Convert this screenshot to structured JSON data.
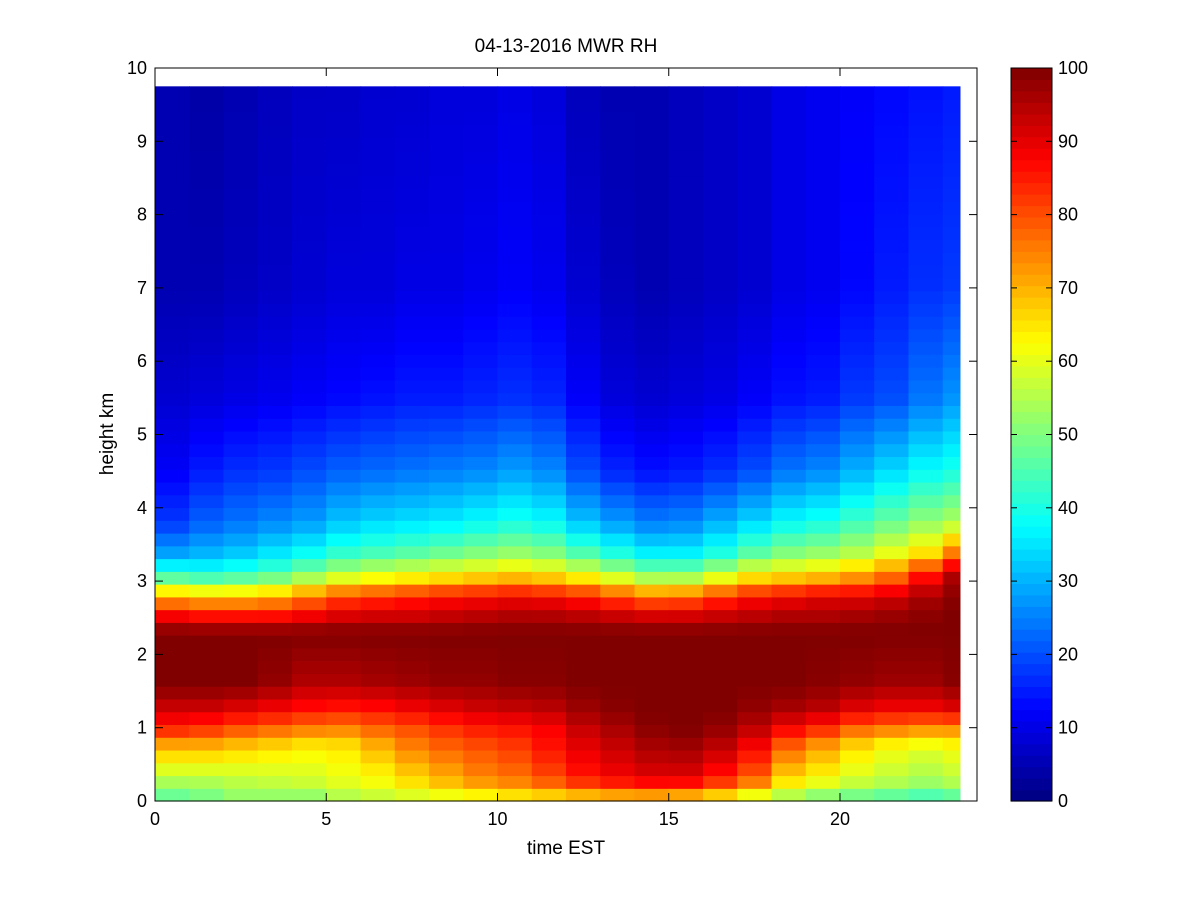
{
  "chart_data": {
    "type": "heatmap",
    "title": "04-13-2016 MWR RH",
    "xlabel": "time EST",
    "ylabel": "height km",
    "xlim": [
      0,
      24
    ],
    "ylim": [
      0,
      10
    ],
    "xticks": [
      0,
      5,
      10,
      15,
      20
    ],
    "yticks": [
      0,
      1,
      2,
      3,
      4,
      5,
      6,
      7,
      8,
      9,
      10
    ],
    "colorbar": {
      "label": "",
      "clim": [
        0,
        100
      ],
      "ticks": [
        0,
        10,
        20,
        30,
        40,
        50,
        60,
        70,
        80,
        90,
        100
      ],
      "colormap": "jet"
    },
    "x": [
      0,
      1,
      2,
      3,
      4,
      5,
      6,
      7,
      8,
      9,
      10,
      11,
      12,
      13,
      14,
      15,
      16,
      17,
      18,
      19,
      20,
      21,
      22,
      23
    ],
    "x_end": 23.5,
    "y_top": 9.75,
    "profiles": [
      {
        "heights": [
          0,
          0.1,
          0.3,
          0.75,
          1.0,
          1.25,
          1.6,
          2.3,
          2.5,
          2.8,
          3.1,
          3.4,
          3.8,
          4.5,
          5.5,
          7.0,
          9.75
        ],
        "rh": [
          35,
          50,
          55,
          70,
          85,
          92,
          100,
          100,
          90,
          70,
          42,
          28,
          18,
          12,
          8,
          5,
          5
        ]
      },
      {
        "heights": [
          0,
          0.1,
          0.3,
          0.75,
          1.0,
          1.25,
          1.6,
          2.3,
          2.5,
          2.8,
          3.1,
          3.4,
          3.8,
          4.5,
          5.5,
          7.0,
          9.75
        ],
        "rh": [
          35,
          52,
          55,
          70,
          83,
          92,
          100,
          100,
          88,
          68,
          40,
          30,
          22,
          15,
          9,
          5,
          4
        ]
      },
      {
        "heights": [
          0,
          0.1,
          0.3,
          0.75,
          1.0,
          1.25,
          1.6,
          2.3,
          2.5,
          2.8,
          3.1,
          3.4,
          3.8,
          4.5,
          5.5,
          7.0,
          9.75
        ],
        "rh": [
          35,
          55,
          56,
          68,
          80,
          90,
          100,
          100,
          88,
          68,
          42,
          32,
          24,
          17,
          10,
          6,
          5
        ]
      },
      {
        "heights": [
          0,
          0.1,
          0.3,
          0.75,
          1.0,
          1.25,
          1.6,
          2.3,
          2.5,
          2.8,
          3.1,
          3.4,
          3.8,
          4.5,
          5.5,
          7.0,
          9.75
        ],
        "rh": [
          35,
          55,
          57,
          66,
          78,
          88,
          98,
          100,
          88,
          70,
          45,
          35,
          26,
          18,
          11,
          7,
          6
        ]
      },
      {
        "heights": [
          0,
          0.1,
          0.3,
          0.75,
          1.0,
          1.25,
          1.6,
          2.3,
          2.5,
          2.8,
          3.1,
          3.4,
          3.8,
          4.5,
          5.5,
          7.0,
          9.75
        ],
        "rh": [
          36,
          55,
          58,
          64,
          76,
          86,
          95,
          100,
          90,
          75,
          50,
          38,
          28,
          20,
          12,
          8,
          7
        ]
      },
      {
        "heights": [
          0,
          0.1,
          0.3,
          0.75,
          1.0,
          1.25,
          1.6,
          2.3,
          2.5,
          2.8,
          3.1,
          3.4,
          3.8,
          4.5,
          5.5,
          7.0,
          9.75
        ],
        "rh": [
          38,
          58,
          60,
          65,
          75,
          85,
          95,
          100,
          92,
          80,
          55,
          42,
          32,
          22,
          13,
          9,
          7
        ]
      },
      {
        "heights": [
          0,
          0.1,
          0.3,
          0.75,
          1.0,
          1.25,
          1.6,
          2.3,
          2.5,
          2.8,
          3.1,
          3.4,
          3.8,
          4.5,
          5.5,
          7.0,
          9.75
        ],
        "rh": [
          40,
          60,
          62,
          70,
          78,
          86,
          96,
          100,
          93,
          82,
          58,
          44,
          34,
          23,
          14,
          9,
          8
        ]
      },
      {
        "heights": [
          0,
          0.1,
          0.3,
          0.75,
          1.0,
          1.25,
          1.6,
          2.3,
          2.5,
          2.8,
          3.1,
          3.4,
          3.8,
          4.5,
          5.5,
          7.0,
          9.75
        ],
        "rh": [
          42,
          62,
          66,
          75,
          80,
          88,
          97,
          100,
          93,
          84,
          60,
          46,
          35,
          24,
          15,
          10,
          8
        ]
      },
      {
        "heights": [
          0,
          0.1,
          0.3,
          0.75,
          1.0,
          1.25,
          1.6,
          2.3,
          2.5,
          2.8,
          3.1,
          3.4,
          3.8,
          4.5,
          5.5,
          7.0,
          9.75
        ],
        "rh": [
          44,
          64,
          70,
          78,
          83,
          90,
          98,
          100,
          94,
          86,
          62,
          48,
          36,
          25,
          15,
          10,
          9
        ]
      },
      {
        "heights": [
          0,
          0.1,
          0.3,
          0.75,
          1.0,
          1.25,
          1.6,
          2.3,
          2.5,
          2.8,
          3.1,
          3.4,
          3.8,
          4.5,
          5.5,
          7.0,
          9.75
        ],
        "rh": [
          46,
          66,
          74,
          80,
          85,
          92,
          98,
          100,
          95,
          87,
          64,
          50,
          38,
          26,
          16,
          11,
          9
        ]
      },
      {
        "heights": [
          0,
          0.1,
          0.3,
          0.75,
          1.0,
          1.25,
          1.6,
          2.3,
          2.5,
          2.8,
          3.1,
          3.4,
          3.8,
          4.5,
          5.5,
          7.0,
          9.75
        ],
        "rh": [
          48,
          68,
          76,
          82,
          86,
          93,
          99,
          100,
          96,
          88,
          66,
          52,
          40,
          28,
          17,
          12,
          10
        ]
      },
      {
        "heights": [
          0,
          0.1,
          0.3,
          0.75,
          1.0,
          1.25,
          1.6,
          2.3,
          2.5,
          2.8,
          3.1,
          3.4,
          3.8,
          4.5,
          5.5,
          7.0,
          9.75
        ],
        "rh": [
          50,
          70,
          80,
          86,
          88,
          94,
          99,
          100,
          96,
          87,
          64,
          50,
          38,
          26,
          16,
          11,
          9
        ]
      },
      {
        "heights": [
          0,
          0.1,
          0.3,
          0.75,
          1.0,
          1.25,
          1.6,
          2.3,
          2.5,
          2.8,
          3.1,
          3.4,
          3.8,
          4.5,
          5.5,
          7.0,
          9.75
        ],
        "rh": [
          55,
          72,
          85,
          90,
          93,
          97,
          100,
          100,
          95,
          85,
          60,
          45,
          32,
          20,
          12,
          8,
          6
        ]
      },
      {
        "heights": [
          0,
          0.1,
          0.3,
          0.75,
          1.0,
          1.25,
          1.6,
          2.3,
          2.5,
          2.8,
          3.1,
          3.4,
          3.8,
          4.5,
          5.5,
          7.0,
          9.75
        ],
        "rh": [
          56,
          74,
          88,
          93,
          96,
          99,
          100,
          100,
          94,
          80,
          55,
          40,
          28,
          16,
          9,
          6,
          5
        ]
      },
      {
        "heights": [
          0,
          0.1,
          0.3,
          0.75,
          1.0,
          1.25,
          1.6,
          2.3,
          2.5,
          2.8,
          3.1,
          3.4,
          3.8,
          4.5,
          5.5,
          7.0,
          9.75
        ],
        "rh": [
          56,
          75,
          90,
          96,
          99,
          100,
          100,
          100,
          93,
          76,
          50,
          36,
          25,
          14,
          8,
          5,
          5
        ]
      },
      {
        "heights": [
          0,
          0.1,
          0.3,
          0.75,
          1.0,
          1.25,
          1.6,
          2.3,
          2.5,
          2.8,
          3.1,
          3.4,
          3.8,
          4.5,
          5.5,
          7.0,
          9.75
        ],
        "rh": [
          54,
          74,
          90,
          97,
          100,
          100,
          100,
          100,
          93,
          77,
          50,
          36,
          26,
          15,
          9,
          6,
          6
        ]
      },
      {
        "heights": [
          0,
          0.1,
          0.3,
          0.75,
          1.0,
          1.25,
          1.6,
          2.3,
          2.5,
          2.8,
          3.1,
          3.4,
          3.8,
          4.5,
          5.5,
          7.0,
          9.75
        ],
        "rh": [
          50,
          70,
          85,
          94,
          98,
          100,
          100,
          100,
          94,
          82,
          56,
          40,
          30,
          17,
          10,
          7,
          7
        ]
      },
      {
        "heights": [
          0,
          0.1,
          0.3,
          0.75,
          1.0,
          1.25,
          1.6,
          2.3,
          2.5,
          2.8,
          3.1,
          3.4,
          3.8,
          4.5,
          5.5,
          7.0,
          9.75
        ],
        "rh": [
          44,
          64,
          78,
          88,
          94,
          98,
          100,
          100,
          95,
          86,
          62,
          46,
          34,
          20,
          12,
          8,
          8
        ]
      },
      {
        "heights": [
          0,
          0.1,
          0.3,
          0.75,
          1.0,
          1.25,
          1.6,
          2.3,
          2.5,
          2.8,
          3.1,
          3.4,
          3.8,
          4.5,
          5.5,
          7.0,
          9.75
        ],
        "rh": [
          40,
          58,
          66,
          78,
          88,
          96,
          100,
          100,
          96,
          88,
          64,
          50,
          38,
          24,
          14,
          10,
          10
        ]
      },
      {
        "heights": [
          0,
          0.1,
          0.3,
          0.75,
          1.0,
          1.25,
          1.6,
          2.3,
          2.5,
          2.8,
          3.1,
          3.4,
          3.8,
          4.5,
          5.5,
          7.0,
          9.75
        ],
        "rh": [
          36,
          54,
          62,
          72,
          84,
          94,
          99,
          100,
          96,
          90,
          66,
          52,
          40,
          26,
          15,
          11,
          11
        ]
      },
      {
        "heights": [
          0,
          0.1,
          0.3,
          0.75,
          1.0,
          1.25,
          1.6,
          2.3,
          2.5,
          2.8,
          3.1,
          3.4,
          3.8,
          4.5,
          5.5,
          7.0,
          9.75
        ],
        "rh": [
          32,
          52,
          58,
          66,
          78,
          90,
          98,
          100,
          97,
          90,
          70,
          55,
          44,
          30,
          18,
          13,
          12
        ]
      },
      {
        "heights": [
          0,
          0.1,
          0.3,
          0.75,
          1.0,
          1.25,
          1.6,
          2.3,
          2.5,
          2.8,
          3.1,
          3.4,
          3.8,
          4.5,
          5.5,
          7.0,
          9.75
        ],
        "rh": [
          30,
          50,
          56,
          62,
          76,
          88,
          97,
          100,
          98,
          92,
          75,
          60,
          48,
          34,
          20,
          15,
          13
        ]
      },
      {
        "heights": [
          0,
          0.1,
          0.3,
          0.75,
          1.0,
          1.25,
          1.6,
          2.3,
          2.5,
          2.8,
          3.1,
          3.4,
          3.8,
          4.5,
          5.5,
          7.0,
          9.75
        ],
        "rh": [
          28,
          48,
          54,
          60,
          74,
          88,
          97,
          100,
          99,
          96,
          85,
          65,
          52,
          38,
          24,
          17,
          14
        ]
      },
      {
        "heights": [
          0,
          0.1,
          0.3,
          0.75,
          1.0,
          1.25,
          1.6,
          2.3,
          2.5,
          2.8,
          3.1,
          3.4,
          3.8,
          4.5,
          5.5,
          7.0,
          9.75
        ],
        "rh": [
          30,
          50,
          56,
          62,
          74,
          90,
          99,
          100,
          100,
          99,
          95,
          75,
          55,
          40,
          27,
          18,
          15
        ]
      }
    ]
  }
}
